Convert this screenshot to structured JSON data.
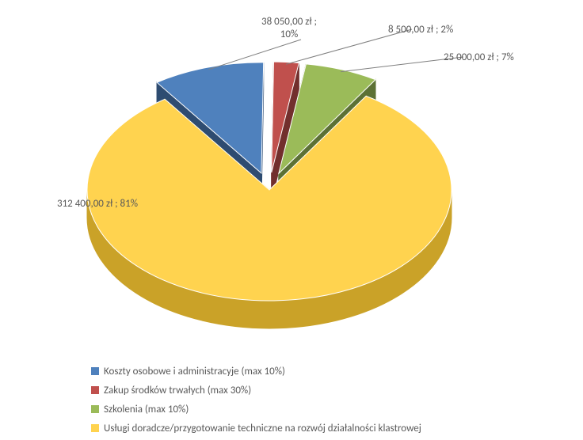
{
  "chart": {
    "type": "pie3d",
    "background_color": "#ffffff",
    "label_color": "#595959",
    "label_fontsize": 13,
    "series": [
      {
        "label": "Koszty osobowe i administracyje (max 10%)",
        "value": 38050.0,
        "percent": 10,
        "display": "38 050,00 zł ; 10%",
        "top_fill": "#4f81bd",
        "side_fill": "#2e4c71",
        "exploded": true
      },
      {
        "label": "Zakup środków trwałych (max 30%)",
        "value": 8500.0,
        "percent": 2,
        "display": "8 500,00 zł ; 2%",
        "top_fill": "#c0504d",
        "side_fill": "#722f2d",
        "exploded": true
      },
      {
        "label": "Szkolenia (max 10%)",
        "value": 25000.0,
        "percent": 7,
        "display": "25 000,00 zł ; 7%",
        "top_fill": "#9bbb59",
        "side_fill": "#5c7135",
        "exploded": true
      },
      {
        "label": "Usługi doradcze/przygotowanie techniczne na rozwój działalności klastrowej",
        "value": 312400.0,
        "percent": 81,
        "display": "312 400,00 zł ; 81%",
        "top_fill": "#ffd34f",
        "side_fill": "#caa228",
        "exploded": false
      }
    ]
  }
}
